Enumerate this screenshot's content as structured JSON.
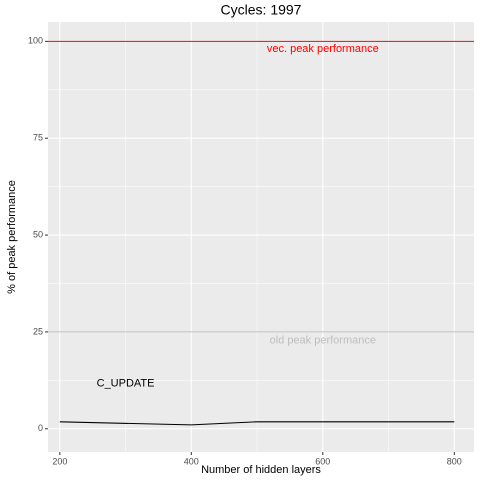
{
  "chart_data": {
    "type": "line",
    "title": "Cycles:  1997",
    "x_label": "Number of hidden layers",
    "y_label": "% of peak performance",
    "series": [
      {
        "color": "#000000",
        "x": [
          200,
          400,
          500,
          800
        ],
        "values": [
          1.8,
          1.0,
          1.8,
          1.8
        ]
      }
    ],
    "xlim": [
      182,
      830
    ],
    "xticks": [
      200,
      400,
      600,
      800
    ],
    "ylim": [
      -6,
      105
    ],
    "yticks": [
      0,
      25,
      50,
      75,
      100
    ],
    "minor_xgrid": [
      300,
      500,
      700
    ],
    "minor_ygrid": [
      12.5,
      37.5,
      62.5,
      87.5
    ],
    "grid": true,
    "hlines": [
      {
        "value": 100,
        "color": "#ff0000",
        "label": "vec. peak performance",
        "label_x": 600,
        "label_y": 98
      },
      {
        "value": 25,
        "color": "#bebebe",
        "label": "old peak performance",
        "label_x": 600,
        "label_y": 22.7
      }
    ],
    "annotations": [
      {
        "text": "C_UPDATE",
        "x": 300,
        "y": 11.6,
        "color": "#000000"
      }
    ]
  }
}
